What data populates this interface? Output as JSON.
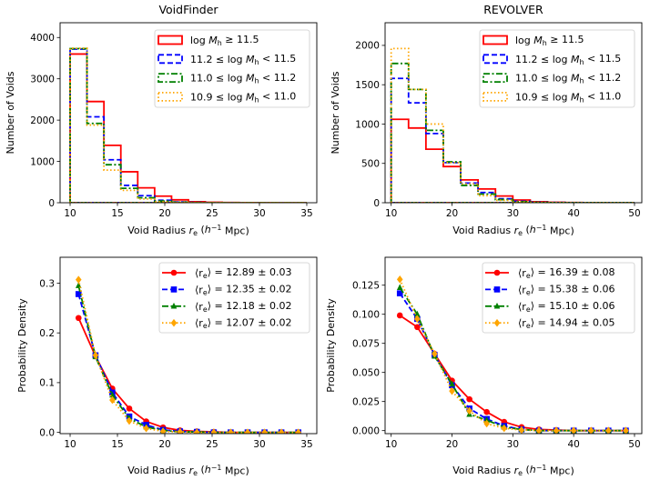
{
  "chart_data": [
    {
      "type": "histogram-step",
      "title": "VoidFinder",
      "xlabel": "Void Radius $r_e$ ($h^{−1}$ Mpc)",
      "ylabel": "Number of Voids",
      "xlim": [
        8.94,
        36.06
      ],
      "ylim": [
        0,
        4358
      ],
      "xticks": [
        10,
        15,
        20,
        25,
        30,
        35
      ],
      "yticks": [
        0,
        1000,
        2000,
        3000,
        4000
      ],
      "ytick_labels": [
        "0",
        "1000",
        "2000",
        "3000",
        "4000"
      ],
      "bin_edges_range": [
        10,
        35
      ],
      "bins": 14,
      "legend": "top-right",
      "series": [
        {
          "name": "$\\log M_h$ ≥ 11.5",
          "color": "#ff0000",
          "style": "solid",
          "values": [
            3600,
            2450,
            1390,
            750,
            360,
            160,
            70,
            25,
            10,
            5,
            2,
            1,
            0,
            0
          ]
        },
        {
          "name": "11.2 ≤ $\\log M_h$ < 11.5",
          "color": "#0000ff",
          "style": "dashed",
          "values": [
            3720,
            2080,
            1040,
            420,
            170,
            60,
            20,
            8,
            3,
            1,
            0,
            0,
            0,
            0
          ]
        },
        {
          "name": "11.0 ≤ $\\log M_h$ < 11.2",
          "color": "#008000",
          "style": "dashdot",
          "values": [
            3730,
            1920,
            920,
            350,
            120,
            40,
            12,
            4,
            1,
            0,
            0,
            0,
            0,
            0
          ]
        },
        {
          "name": "10.9 ≤ $\\log M_h$ < 11.0",
          "color": "#ffa500",
          "style": "dotted",
          "values": [
            3740,
            1880,
            790,
            300,
            90,
            25,
            8,
            2,
            1,
            0,
            0,
            0,
            0,
            0
          ]
        }
      ]
    },
    {
      "type": "histogram-step",
      "title": "REVOLVER",
      "xlabel": "Void Radius $r_e$ ($h^{−1}$ Mpc)",
      "ylabel": "Number of Voids",
      "xlim": [
        9.0,
        51.2
      ],
      "ylim": [
        0,
        2288
      ],
      "xticks": [
        10,
        20,
        30,
        40,
        50
      ],
      "yticks": [
        0,
        500,
        1000,
        1500,
        2000
      ],
      "ytick_labels": [
        "0",
        "500",
        "1000",
        "1500",
        "2000"
      ],
      "bin_edges_range": [
        10,
        50
      ],
      "bins": 14,
      "legend": "top-right",
      "series": [
        {
          "name": "$\\log M_h$ ≥ 11.5",
          "color": "#ff0000",
          "style": "solid",
          "values": [
            1060,
            950,
            680,
            460,
            290,
            175,
            85,
            35,
            12,
            5,
            2,
            1,
            0,
            0
          ]
        },
        {
          "name": "11.2 ≤ $\\log M_h$ < 11.5",
          "color": "#0000ff",
          "style": "dashed",
          "values": [
            1580,
            1270,
            880,
            510,
            250,
            130,
            50,
            18,
            6,
            2,
            1,
            0,
            0,
            0
          ]
        },
        {
          "name": "11.0 ≤ $\\log M_h$ < 11.2",
          "color": "#008000",
          "style": "dashdot",
          "values": [
            1770,
            1440,
            920,
            520,
            220,
            110,
            40,
            12,
            4,
            1,
            0,
            0,
            0,
            0
          ]
        },
        {
          "name": "10.9 ≤ $\\log M_h$ < 11.0",
          "color": "#ffa500",
          "style": "dotted",
          "values": [
            1960,
            1440,
            1000,
            510,
            240,
            90,
            30,
            8,
            2,
            1,
            0,
            0,
            0,
            0
          ]
        }
      ]
    },
    {
      "type": "line",
      "title": "",
      "xlabel": "Void Radius $r_e$ ($h^{−1}$ Mpc)",
      "ylabel": "Probability Density",
      "xlim": [
        8.94,
        36.06
      ],
      "ylim": [
        -0.0025,
        0.352
      ],
      "xticks": [
        10,
        15,
        20,
        25,
        30,
        35
      ],
      "yticks": [
        0,
        0.1,
        0.2,
        0.3
      ],
      "ytick_labels": [
        "0.0",
        "0.1",
        "0.2",
        "0.3"
      ],
      "x": [
        10.89,
        12.68,
        14.46,
        16.25,
        18.04,
        19.82,
        21.61,
        23.39,
        25.18,
        26.96,
        28.75,
        30.54,
        32.32,
        34.11
      ],
      "legend": "top-right",
      "series": [
        {
          "name": "⟨r$_e$⟩ = 12.89 ± 0.03",
          "color": "#ff0000",
          "style": "solid",
          "marker": "circle",
          "values": [
            0.23,
            0.153,
            0.088,
            0.048,
            0.022,
            0.01,
            0.004,
            0.002,
            0.001,
            0,
            0,
            0,
            0,
            0
          ]
        },
        {
          "name": "⟨r$_e$⟩ = 12.35 ± 0.02",
          "color": "#0000ff",
          "style": "dashed",
          "marker": "square",
          "values": [
            0.278,
            0.155,
            0.08,
            0.032,
            0.015,
            0.005,
            0.002,
            0.001,
            0,
            0,
            0,
            0,
            0,
            0
          ]
        },
        {
          "name": "⟨r$_e$⟩ = 12.18 ± 0.02",
          "color": "#008000",
          "style": "dashdot",
          "marker": "triangle",
          "values": [
            0.295,
            0.152,
            0.075,
            0.028,
            0.011,
            0.004,
            0.001,
            0.001,
            0,
            0,
            0,
            0,
            0,
            0
          ]
        },
        {
          "name": "⟨r$_e$⟩ = 12.07 ± 0.02",
          "color": "#ffa500",
          "style": "dotted",
          "marker": "diamond",
          "values": [
            0.307,
            0.155,
            0.065,
            0.023,
            0.008,
            0.002,
            0.001,
            0,
            0,
            0,
            0,
            0,
            0,
            0
          ]
        }
      ]
    },
    {
      "type": "line",
      "title": "",
      "xlabel": "Void Radius $r_e$ ($h^{−1}$ Mpc)",
      "ylabel": "Probability Density",
      "xlim": [
        9.0,
        51.2
      ],
      "ylim": [
        -0.0026,
        0.149
      ],
      "xticks": [
        10,
        20,
        30,
        40,
        50
      ],
      "yticks": [
        0,
        0.025,
        0.05,
        0.075,
        0.1,
        0.125
      ],
      "ytick_labels": [
        "0.000",
        "0.025",
        "0.050",
        "0.075",
        "0.100",
        "0.125"
      ],
      "x": [
        11.43,
        14.29,
        17.14,
        20.0,
        22.86,
        25.71,
        28.57,
        31.43,
        34.29,
        37.14,
        40.0,
        42.86,
        45.71,
        48.57
      ],
      "legend": "top-right",
      "series": [
        {
          "name": "⟨r$_e$⟩ = 16.39 ± 0.08",
          "color": "#ff0000",
          "style": "solid",
          "marker": "circle",
          "values": [
            0.099,
            0.089,
            0.066,
            0.043,
            0.027,
            0.016,
            0.0075,
            0.003,
            0.001,
            0.0005,
            0,
            0,
            0,
            0
          ]
        },
        {
          "name": "⟨r$_e$⟩ = 15.38 ± 0.06",
          "color": "#0000ff",
          "style": "dashed",
          "marker": "square",
          "values": [
            0.118,
            0.096,
            0.065,
            0.039,
            0.019,
            0.01,
            0.004,
            0.001,
            0,
            0,
            0,
            0,
            0,
            0
          ]
        },
        {
          "name": "⟨r$_e$⟩ = 15.10 ± 0.06",
          "color": "#008000",
          "style": "dashdot",
          "marker": "triangle",
          "values": [
            0.123,
            0.1,
            0.064,
            0.04,
            0.014,
            0.009,
            0.003,
            0.001,
            0,
            0,
            0,
            0,
            0,
            0
          ]
        },
        {
          "name": "⟨r$_e$⟩ = 14.94 ± 0.05",
          "color": "#ffa500",
          "style": "dotted",
          "marker": "diamond",
          "values": [
            0.13,
            0.096,
            0.066,
            0.034,
            0.017,
            0.006,
            0.002,
            0.0005,
            0,
            0,
            0,
            0,
            0,
            0
          ]
        }
      ]
    }
  ]
}
